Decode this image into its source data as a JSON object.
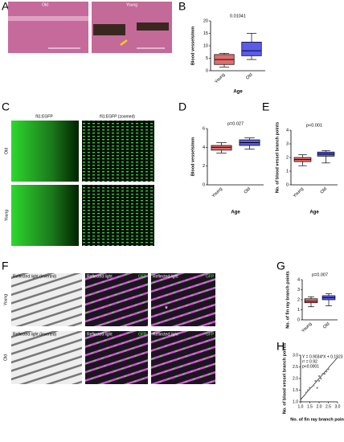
{
  "panels": {
    "a": "A",
    "b": "B",
    "c": "C",
    "d": "D",
    "e": "E",
    "f": "F",
    "g": "G",
    "h": "H"
  },
  "images": {
    "a_left": "Old",
    "a_right": "Young",
    "c_col1": "fli1:EGFP",
    "c_col2": "fli1:EGFP (zoomed)",
    "c_row1": "Old",
    "c_row2": "Young",
    "f_col1a": "Reflected light (inverted)",
    "f_col2a": "Reflected light",
    "f_col2b": "GFP",
    "f_col3a": "Reflected light",
    "f_col3b": "GFP",
    "f_col1b": "Reflected light (inverted)",
    "f_col2c": "Reflected light",
    "f_col2d": "GFP",
    "f_col3c": "Reflected light",
    "f_col3d": "GFP",
    "f_row1": "Young",
    "f_row2": "Old",
    "f_star": "*"
  },
  "chart_data": [
    {
      "type": "box",
      "ylabel": "Blood vessels/mm",
      "xlabel": "Age",
      "annotation": "0.01041",
      "categories": [
        "Young",
        "Old"
      ],
      "colors": [
        "#e36a6a",
        "#5b5bea"
      ],
      "boxes": [
        {
          "min": 1.5,
          "q1": 2.5,
          "median": 4.5,
          "q3": 6.5,
          "max": 7
        },
        {
          "min": 4.5,
          "q1": 6,
          "median": 8,
          "q3": 11.5,
          "max": 15
        }
      ],
      "ylim": [
        0,
        20
      ],
      "yticks": [
        0,
        5,
        10,
        15,
        20
      ]
    },
    {
      "type": "box",
      "ylabel": "Blood vessels/mm",
      "xlabel": "Age",
      "annotation": "p=0.027",
      "categories": [
        "Young",
        "Old"
      ],
      "colors": [
        "#e36a6a",
        "#5b5bea"
      ],
      "boxes": [
        {
          "min": 3.4,
          "q1": 3.7,
          "median": 4.0,
          "q3": 4.2,
          "max": 4.5
        },
        {
          "min": 3.8,
          "q1": 4.2,
          "median": 4.5,
          "q3": 4.8,
          "max": 5.0
        }
      ],
      "ylim": [
        0,
        6
      ],
      "yticks": [
        0,
        2,
        4,
        6
      ]
    },
    {
      "type": "box",
      "ylabel": "No. of blood vessel branch points",
      "xlabel": "Age",
      "annotation": "p<0.001",
      "categories": [
        "Young",
        "Old"
      ],
      "colors": [
        "#e36a6a",
        "#5b5bea"
      ],
      "boxes": [
        {
          "min": 1.4,
          "q1": 1.7,
          "median": 1.85,
          "q3": 2.0,
          "max": 2.2
        },
        {
          "min": 1.6,
          "q1": 2.1,
          "median": 2.25,
          "q3": 2.4,
          "max": 2.5
        }
      ],
      "ylim": [
        0,
        4
      ],
      "yticks": [
        0,
        1,
        2,
        3,
        4
      ]
    },
    {
      "type": "box",
      "ylabel": "No. of fin ray branch points",
      "annotation": "p=0.007",
      "categories": [
        "Young",
        "Old"
      ],
      "colors": [
        "#e36a6a",
        "#5b5bea"
      ],
      "boxes": [
        {
          "min": 1.3,
          "q1": 1.7,
          "median": 1.85,
          "q3": 2.1,
          "max": 2.3
        },
        {
          "min": 1.4,
          "q1": 2.0,
          "median": 2.2,
          "q3": 2.4,
          "max": 2.6
        }
      ],
      "ylim": [
        0,
        4
      ],
      "yticks": [
        0,
        1,
        2,
        3,
        4
      ]
    },
    {
      "type": "scatter",
      "xlabel": "No. of fin ray branch points",
      "ylabel": "No. of blood vessel branch points",
      "annotations": [
        "Y = 0.9034*X + 0.1923",
        "r² = 0.92",
        "p<0.0001"
      ],
      "x": [
        1.3,
        1.4,
        1.5,
        1.7,
        1.8,
        1.9,
        2.0,
        2.0,
        2.1,
        2.2,
        2.3,
        2.4,
        2.5
      ],
      "y": [
        1.4,
        1.5,
        1.6,
        1.7,
        1.9,
        1.6,
        1.9,
        2.1,
        2.0,
        2.2,
        2.2,
        2.3,
        2.4
      ],
      "color": "#888888",
      "fit_line": {
        "slope": 0.9034,
        "intercept": 0.1923
      },
      "xlim": [
        1,
        3
      ],
      "ylim": [
        1,
        3
      ],
      "xticks": [
        {
          "value": 1.0,
          "label": "1.0"
        },
        1.5,
        {
          "value": 2.0,
          "label": "2.0"
        },
        2.5,
        {
          "value": 3.0,
          "label": "3.0"
        }
      ],
      "yticks": [
        {
          "value": 1.0,
          "label": "1.0"
        },
        1.5,
        {
          "value": 2.0,
          "label": "2.0"
        },
        2.5,
        {
          "value": 3.0,
          "label": "3.0"
        }
      ]
    }
  ]
}
